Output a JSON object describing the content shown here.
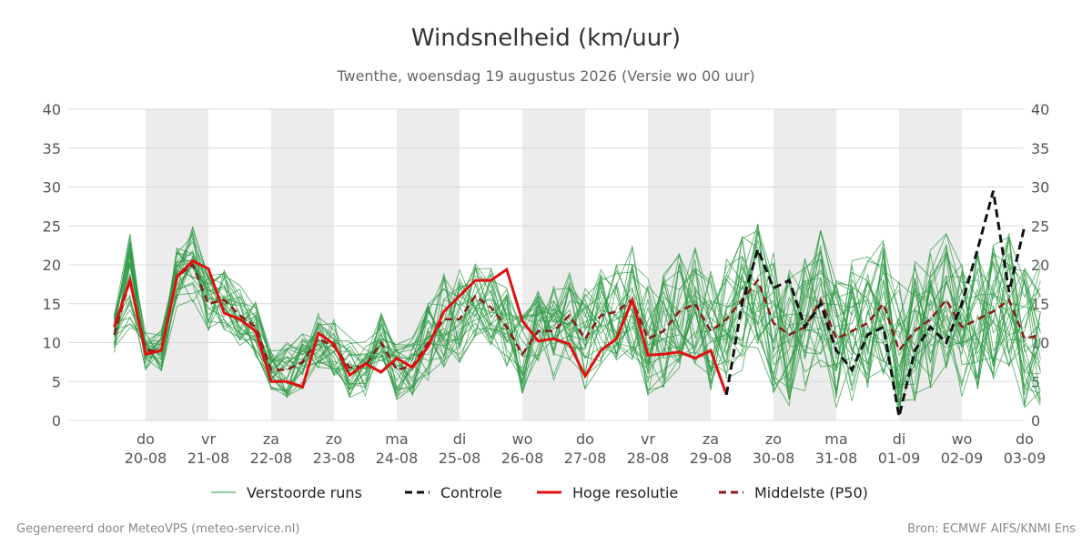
{
  "title": "Windsnelheid (km/uur)",
  "subtitle": "Twenthe, woensdag 19 augustus 2026 (Versie wo 00 uur)",
  "footer_left": "Gegenereerd door MeteoVPS (meteo-service.nl)",
  "footer_right": "Bron: ECMWF AIFS/KNMI Ens",
  "colors": {
    "ensemble": "#2e9a44",
    "control": "#111111",
    "hires": "#e01010",
    "median": "#8b1a1a",
    "shade": "#ececec",
    "grid": "#d9d9d9"
  },
  "legend": [
    {
      "key": "ensemble",
      "label": "Verstoorde runs",
      "style": "thin"
    },
    {
      "key": "control",
      "label": "Controle",
      "style": "dashed"
    },
    {
      "key": "hires",
      "label": "Hoge resolutie",
      "style": "solid"
    },
    {
      "key": "median",
      "label": "Middelste (P50)",
      "style": "dashed"
    }
  ],
  "chart_data": {
    "type": "line",
    "x_unit": "days since 19-08-2026 00 uur",
    "xlim": [
      0.5,
      15.25
    ],
    "ylim": [
      0,
      40
    ],
    "yticks": [
      0,
      5,
      10,
      15,
      20,
      25,
      30,
      35,
      40
    ],
    "grid": true,
    "legend_position": "bottom",
    "x_ticks": [
      {
        "day": "do",
        "date": "20-08"
      },
      {
        "day": "vr",
        "date": "21-08"
      },
      {
        "day": "za",
        "date": "22-08"
      },
      {
        "day": "zo",
        "date": "23-08"
      },
      {
        "day": "ma",
        "date": "24-08"
      },
      {
        "day": "di",
        "date": "25-08"
      },
      {
        "day": "wo",
        "date": "26-08"
      },
      {
        "day": "do",
        "date": "27-08"
      },
      {
        "day": "vr",
        "date": "28-08"
      },
      {
        "day": "za",
        "date": "29-08"
      },
      {
        "day": "zo",
        "date": "30-08"
      },
      {
        "day": "ma",
        "date": "31-08"
      },
      {
        "day": "di",
        "date": "01-09"
      },
      {
        "day": "wo",
        "date": "02-09"
      },
      {
        "day": "do",
        "date": "03-09"
      }
    ],
    "shaded_days": [
      1,
      3,
      5,
      7,
      9,
      11,
      13
    ],
    "hires": {
      "name": "Hoge resolutie",
      "x": [
        0.5,
        0.75,
        1.0,
        1.25,
        1.5,
        1.75,
        2.0,
        2.25,
        2.5,
        2.75,
        3.0,
        3.25,
        3.5,
        3.75,
        4.0,
        4.25,
        4.5,
        4.75,
        5.0,
        5.25,
        5.5,
        5.75,
        6.0,
        6.25,
        6.5,
        6.75,
        7.0,
        7.25,
        7.5,
        7.75,
        8.0,
        8.25,
        8.5,
        8.75,
        9.0,
        9.25,
        9.5,
        9.75,
        10.0,
        10.25,
        10.5,
        10.75,
        11.0,
        11.25,
        11.5,
        11.75,
        12.0
      ],
      "y": [
        12,
        18,
        8.5,
        9,
        18.5,
        20.5,
        19.5,
        13.8,
        13,
        11.5,
        5,
        5,
        4.3,
        11.2,
        9.8,
        5.8,
        7.3,
        6.2,
        8,
        6.8,
        9.5,
        14,
        16,
        18,
        18,
        19.4,
        12.8,
        10.2,
        10.5,
        9.8,
        5.7,
        9,
        10.5,
        15.5,
        8.4,
        8.5,
        8.8,
        8,
        9,
        3.3,
        null,
        null,
        null,
        null,
        null,
        null,
        null
      ]
    },
    "control": {
      "name": "Controle",
      "x": [
        0.5,
        0.75,
        1.0,
        1.25,
        1.5,
        1.75,
        2.0,
        2.25,
        2.5,
        2.75,
        3.0,
        3.25,
        3.5,
        3.75,
        4.0,
        4.25,
        4.5,
        4.75,
        5.0,
        5.25,
        5.5,
        5.75,
        6.0,
        6.25,
        6.5,
        6.75,
        7.0,
        7.25,
        7.5,
        7.75,
        8.0,
        8.25,
        8.5,
        8.75,
        9.0,
        9.25,
        9.5,
        9.75,
        10.0,
        10.25,
        10.5,
        10.75,
        11.0,
        11.25,
        11.5,
        11.75,
        12.0,
        12.25,
        12.5,
        12.75,
        13.0,
        13.25,
        13.5,
        13.75,
        14.0,
        14.25,
        14.5,
        14.75,
        15.0,
        15.25
      ],
      "y": [
        null,
        null,
        null,
        null,
        null,
        null,
        null,
        null,
        null,
        null,
        null,
        null,
        null,
        null,
        null,
        null,
        null,
        null,
        null,
        null,
        null,
        null,
        null,
        null,
        null,
        null,
        null,
        null,
        null,
        null,
        null,
        null,
        null,
        null,
        null,
        null,
        null,
        null,
        null,
        3.3,
        15,
        22,
        17,
        18,
        12,
        15,
        9,
        6.5,
        11,
        12,
        0.5,
        9,
        12,
        10,
        15,
        22,
        29.5,
        16.5,
        25,
        null
      ]
    },
    "median": {
      "name": "Middelste (P50)",
      "x": [
        0.5,
        0.75,
        1.0,
        1.25,
        1.5,
        1.75,
        2.0,
        2.25,
        2.5,
        2.75,
        3.0,
        3.25,
        3.5,
        3.75,
        4.0,
        4.25,
        4.5,
        4.75,
        5.0,
        5.25,
        5.5,
        5.75,
        6.0,
        6.25,
        6.5,
        6.75,
        7.0,
        7.25,
        7.5,
        7.75,
        8.0,
        8.25,
        8.5,
        8.75,
        9.0,
        9.25,
        9.5,
        9.75,
        10.0,
        10.25,
        10.5,
        10.75,
        11.0,
        11.25,
        11.5,
        11.75,
        12.0,
        12.25,
        12.5,
        12.75,
        13.0,
        13.25,
        13.5,
        13.75,
        14.0,
        14.25,
        14.5,
        14.75,
        15.0,
        15.25
      ],
      "y": [
        11,
        18,
        9,
        9,
        18.5,
        20,
        15,
        15.5,
        13.5,
        12,
        6.5,
        6.5,
        7.5,
        10.5,
        9.5,
        6.8,
        7,
        10,
        6.5,
        7,
        10,
        13,
        13,
        16,
        14.5,
        12,
        8.5,
        11.5,
        11.5,
        13.5,
        10.5,
        13.5,
        14,
        15.5,
        10.5,
        11.5,
        14,
        15,
        11.5,
        13,
        15.5,
        18,
        12.5,
        11,
        12,
        15.5,
        10.5,
        11.5,
        12.5,
        15,
        9,
        11.5,
        13,
        15.5,
        12,
        13,
        14,
        15.5,
        10.5,
        11
      ]
    },
    "ensemble_members": 30,
    "ensemble_x": [
      0.5,
      0.75,
      1.0,
      1.25,
      1.5,
      1.75,
      2.0,
      2.25,
      2.5,
      2.75,
      3.0,
      3.25,
      3.5,
      3.75,
      4.0,
      4.25,
      4.5,
      4.75,
      5.0,
      5.25,
      5.5,
      5.75,
      6.0,
      6.25,
      6.5,
      6.75,
      7.0,
      7.25,
      7.5,
      7.75,
      8.0,
      8.25,
      8.5,
      8.75,
      9.0,
      9.25,
      9.5,
      9.75,
      10.0,
      10.25,
      10.5,
      10.75,
      11.0,
      11.25,
      11.5,
      11.75,
      12.0,
      12.25,
      12.5,
      12.75,
      13.0,
      13.25,
      13.5,
      13.75,
      14.0,
      14.25,
      14.5,
      14.75,
      15.0,
      15.25
    ],
    "ensemble_center": [
      11,
      18,
      9,
      9,
      18.5,
      20,
      15,
      15.5,
      13.5,
      12,
      6.5,
      6.5,
      7.5,
      10.5,
      9.5,
      6.8,
      7,
      10,
      6.5,
      7,
      10,
      13,
      13,
      16,
      14.5,
      12,
      8.5,
      11.5,
      11.5,
      13.5,
      10.5,
      13.5,
      14,
      15.5,
      10.5,
      11.5,
      14,
      15,
      11.5,
      13,
      15.5,
      18,
      12.5,
      11,
      12,
      15.5,
      10.5,
      11.5,
      12.5,
      15,
      9,
      11.5,
      13,
      15.5,
      12,
      13,
      14,
      15.5,
      10.5,
      11
    ],
    "ensemble_spread": [
      2,
      5,
      2,
      2,
      3,
      4,
      3,
      3,
      3,
      3,
      2,
      3,
      3,
      3,
      3,
      3,
      3,
      3,
      3,
      3,
      4,
      5,
      5,
      4,
      4,
      4,
      4,
      4,
      5,
      5,
      5,
      5,
      5,
      6,
      6,
      6,
      6,
      6,
      6,
      6,
      7,
      7,
      7,
      7,
      7,
      7,
      7,
      7,
      7,
      7,
      7,
      7,
      7,
      7,
      7,
      7,
      7,
      7,
      7,
      7
    ]
  }
}
